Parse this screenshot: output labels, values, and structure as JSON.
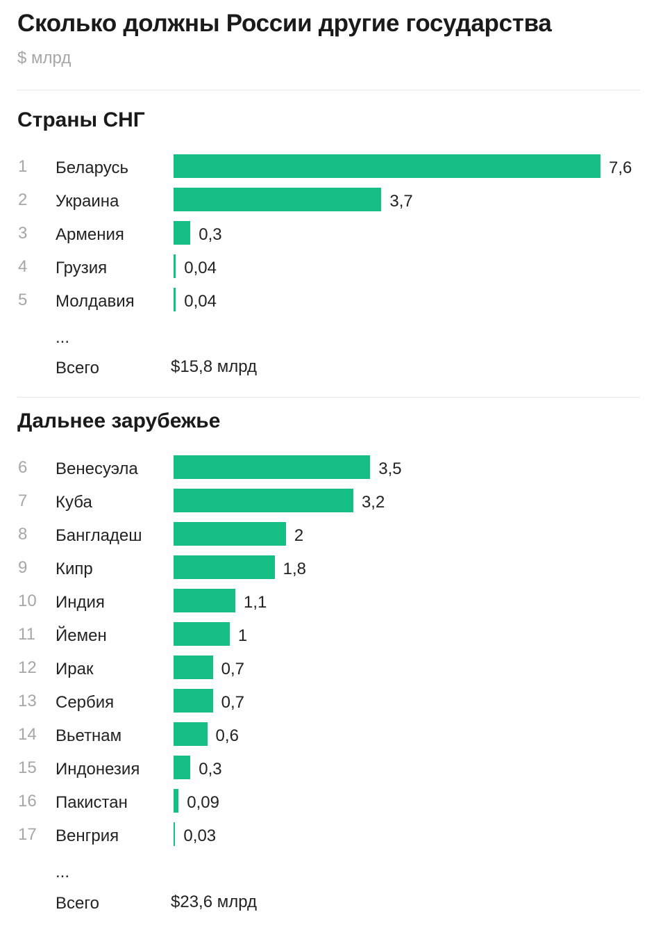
{
  "header": {
    "title": "Сколько должны России другие государства",
    "subtitle": "$ млрд"
  },
  "chart_data": [
    {
      "type": "bar",
      "orientation": "horizontal",
      "title": "Страны СНГ",
      "ellipsis": "...",
      "total_label": "Всего",
      "total_value": "$15,8 млрд",
      "series": [
        {
          "rank": "1",
          "name": "Беларусь",
          "value": 7.6,
          "label": "7,6"
        },
        {
          "rank": "2",
          "name": "Украина",
          "value": 3.7,
          "label": "3,7"
        },
        {
          "rank": "3",
          "name": "Армения",
          "value": 0.3,
          "label": "0,3"
        },
        {
          "rank": "4",
          "name": "Грузия",
          "value": 0.04,
          "label": "0,04"
        },
        {
          "rank": "5",
          "name": "Молдавия",
          "value": 0.04,
          "label": "0,04"
        }
      ]
    },
    {
      "type": "bar",
      "orientation": "horizontal",
      "title": "Дальнее зарубежье",
      "ellipsis": "...",
      "total_label": "Всего",
      "total_value": "$23,6 млрд",
      "series": [
        {
          "rank": "6",
          "name": "Венесуэла",
          "value": 3.5,
          "label": "3,5"
        },
        {
          "rank": "7",
          "name": "Куба",
          "value": 3.2,
          "label": "3,2"
        },
        {
          "rank": "8",
          "name": "Бангладеш",
          "value": 2,
          "label": "2"
        },
        {
          "rank": "9",
          "name": "Кипр",
          "value": 1.8,
          "label": "1,8"
        },
        {
          "rank": "10",
          "name": "Индия",
          "value": 1.1,
          "label": "1,1"
        },
        {
          "rank": "11",
          "name": "Йемен",
          "value": 1,
          "label": "1"
        },
        {
          "rank": "12",
          "name": "Ирак",
          "value": 0.7,
          "label": "0,7"
        },
        {
          "rank": "13",
          "name": "Сербия",
          "value": 0.7,
          "label": "0,7"
        },
        {
          "rank": "14",
          "name": "Вьетнам",
          "value": 0.6,
          "label": "0,6"
        },
        {
          "rank": "15",
          "name": "Индонезия",
          "value": 0.3,
          "label": "0,3"
        },
        {
          "rank": "16",
          "name": "Пакистан",
          "value": 0.09,
          "label": "0,09"
        },
        {
          "rank": "17",
          "name": "Венгрия",
          "value": 0.03,
          "label": "0,03"
        }
      ]
    }
  ],
  "colors": {
    "bar": "#15be85"
  }
}
